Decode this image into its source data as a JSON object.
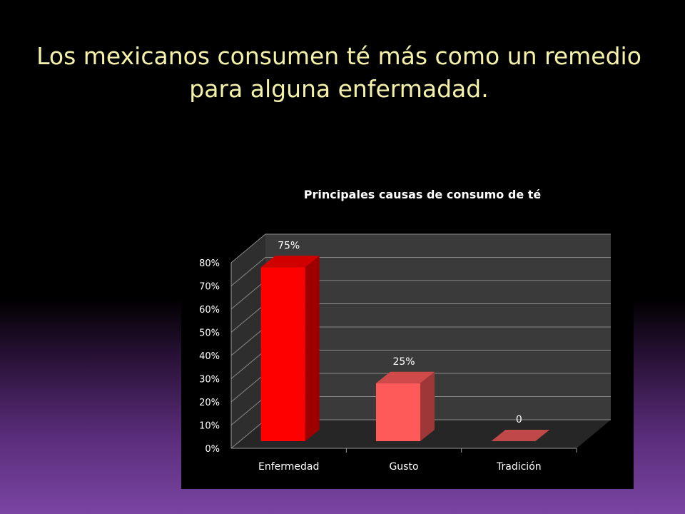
{
  "slide": {
    "title": "Los mexicanos consumen té más como un remedio para alguna enfermadad."
  },
  "colors": {
    "bar_enfermedad": "#ff0000",
    "bar_gusto": "#ff5a5a",
    "bar_tradicion": "#c04848",
    "text_title": "#f4f1a8"
  },
  "chart_data": {
    "type": "bar",
    "title": "Principales causas de consumo de té",
    "categories": [
      "Enfermedad",
      "Gusto",
      "Tradición"
    ],
    "values": [
      0.75,
      0.25,
      0
    ],
    "data_labels": [
      "75%",
      "25%",
      "0"
    ],
    "ylim": [
      0,
      0.8
    ],
    "yticks": [
      "0%",
      "10%",
      "20%",
      "30%",
      "40%",
      "50%",
      "60%",
      "70%",
      "80%"
    ],
    "grid": true,
    "style": "3d-column"
  }
}
